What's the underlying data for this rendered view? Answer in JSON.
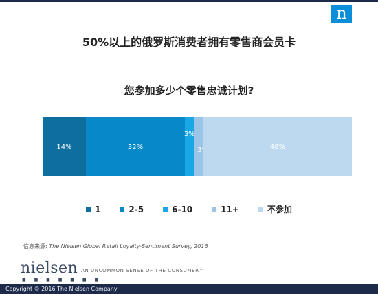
{
  "header": {
    "logo_letter": "n"
  },
  "chart_data": {
    "type": "bar",
    "stacked": true,
    "orientation": "horizontal",
    "title": "50%以上的俄罗斯消费者拥有零售商会员卡",
    "subtitle": "您参加多少个零售忠诚计划?",
    "xlim": [
      0,
      100
    ],
    "series": [
      {
        "name": "1",
        "value": 14,
        "label": "14%",
        "color": "#0e6e9e"
      },
      {
        "name": "2-5",
        "value": 32,
        "label": "32%",
        "color": "#0788c8"
      },
      {
        "name": "6-10",
        "value": 3,
        "label": "3%",
        "color": "#1aa7e6"
      },
      {
        "name": "11+",
        "value": 3,
        "label": "3%",
        "color": "#9cc4e4"
      },
      {
        "name": "不参加",
        "value": 48,
        "label": "48%",
        "color": "#bcd9ef"
      }
    ],
    "legend_position": "bottom",
    "grid": false
  },
  "source": {
    "label": "信息来源:",
    "text": "The Nielsen Global Retail Loyalty-Sentiment Survey, 2016"
  },
  "brand": {
    "name": "nielsen",
    "tagline": "AN UNCOMMON SENSE OF THE CONSUMER™",
    "dots": "■ ■ ■ ■ ■ ■ ■"
  },
  "footer": {
    "copyright": "Copyright © 2016 The Nielsen Company"
  }
}
